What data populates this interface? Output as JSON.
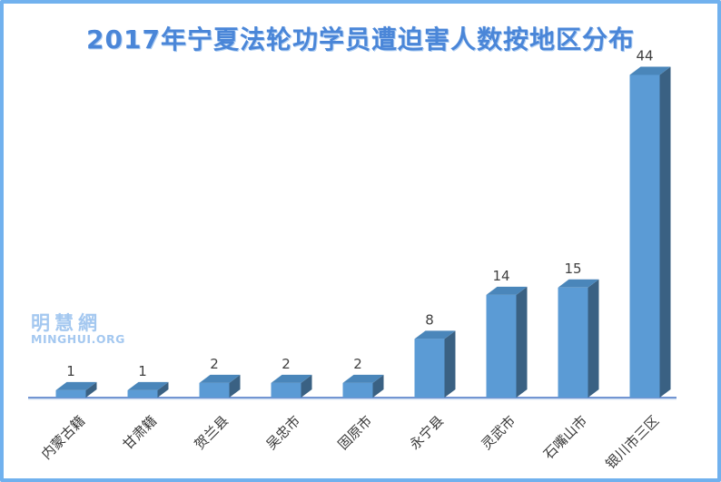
{
  "title": "2017年宁夏法轮功学员遭迫害人数按地区分布",
  "watermark": {
    "line1": "明慧網",
    "line2": "MINGHUI.ORG"
  },
  "chart_data": {
    "type": "bar",
    "style": "3d-column",
    "title": "2017年宁夏法轮功学员遭迫害人数按地区分布",
    "categories": [
      "内蒙古籍",
      "甘肃籍",
      "贺兰县",
      "吴忠市",
      "固原市",
      "永宁县",
      "灵武市",
      "石嘴山市",
      "银川市三区"
    ],
    "values": [
      1,
      1,
      2,
      2,
      2,
      8,
      14,
      15,
      44
    ],
    "xlabel": "",
    "ylabel": "",
    "ylim": [
      0,
      46
    ],
    "grid": false,
    "legend": false,
    "data_labels": true,
    "x_label_rotation_deg": 45
  },
  "colors": {
    "border": "#71b1ee",
    "title_text": "#4a86d8",
    "bar_front": "#5b9bd5",
    "bar_top": "#4a86ba",
    "bar_side": "#3a6183",
    "baseline": "#4472c4",
    "baseline_shadow": "#bdd2ee",
    "value_label": "#404040",
    "category_label": "#383838",
    "watermark_text": "#a4c8f0"
  }
}
